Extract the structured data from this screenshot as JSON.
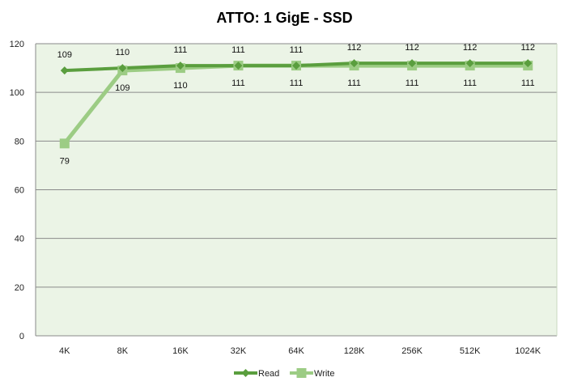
{
  "chart_data": {
    "type": "line",
    "title": "ATTO: 1 GigE - SSD",
    "categories": [
      "4K",
      "8K",
      "16K",
      "32K",
      "64K",
      "128K",
      "256K",
      "512K",
      "1024K"
    ],
    "series": [
      {
        "name": "Read",
        "values": [
          109,
          110,
          111,
          111,
          111,
          112,
          112,
          112,
          112
        ],
        "color": "#5a9e3e",
        "marker": "diamond"
      },
      {
        "name": "Write",
        "values": [
          79,
          109,
          110,
          111,
          111,
          111,
          111,
          111,
          111
        ],
        "color": "#9ccc84",
        "marker": "square"
      }
    ],
    "ylim": [
      0,
      120
    ],
    "yticks": [
      0,
      20,
      40,
      60,
      80,
      100,
      120
    ],
    "grid": true,
    "legend_position": "bottom",
    "plot_background": "#ebf4e6"
  }
}
